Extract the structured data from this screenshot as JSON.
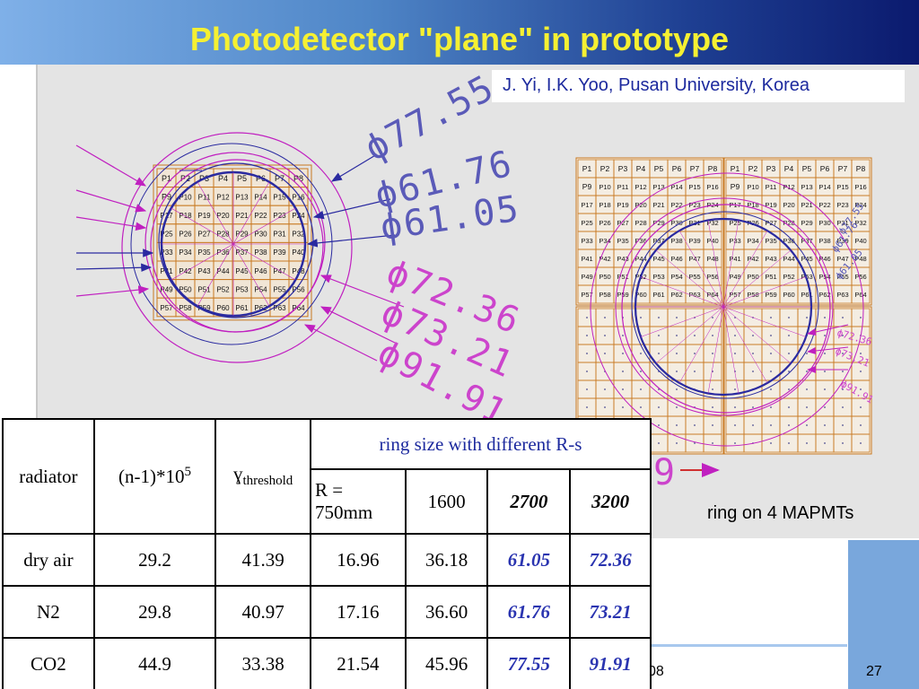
{
  "title": "Photodetector \"plane\" in prototype",
  "author": "J. Yi, I.K. Yoo, Pusan University, Korea",
  "caption": "ring on 4 MAPMTs",
  "footer": {
    "date_fragment": "08",
    "page_number": "27"
  },
  "left_diagram": {
    "pixel_rows": [
      [
        "P1",
        "P2",
        "P3",
        "P4",
        "P5",
        "P6",
        "P7",
        "P8"
      ],
      [
        "P9",
        "P10",
        "P11",
        "P12",
        "P13",
        "P14",
        "P15",
        "P16"
      ],
      [
        "P17",
        "P18",
        "P19",
        "P20",
        "P21",
        "P22",
        "P23",
        "P24"
      ],
      [
        "P25",
        "P26",
        "P27",
        "P28",
        "P29",
        "P30",
        "P31",
        "P32"
      ],
      [
        "P33",
        "P34",
        "P35",
        "P36",
        "P37",
        "P38",
        "P39",
        "P40"
      ],
      [
        "P41",
        "P42",
        "P43",
        "P44",
        "P45",
        "P46",
        "P47",
        "P48"
      ],
      [
        "P49",
        "P50",
        "P51",
        "P52",
        "P53",
        "P54",
        "P55",
        "P56"
      ],
      [
        "P57",
        "P58",
        "P59",
        "P60",
        "P61",
        "P62",
        "P63",
        "P64"
      ]
    ],
    "dim_labels": [
      "ϕ77.55",
      "ϕ61.76",
      "ϕ61.05",
      "ϕ72.36",
      "ϕ73.21",
      "ϕ91.91"
    ],
    "colors": {
      "blue": "#2a2aa0",
      "magenta": "#c020c0",
      "grid": "#c87820",
      "dim_blue": "#5a5ab8",
      "dim_magenta": "#cc44cc"
    }
  },
  "right_diagram": {
    "small_labels": [
      "ϕ77.55",
      "ϕ61.76",
      "ϕ61.05",
      "ϕ72.36",
      "ϕ73.21",
      "ϕ91.91"
    ],
    "partial_label": "9"
  },
  "table": {
    "col_headers": {
      "radiator": "radiator",
      "n_minus_1": "(n-1)*10",
      "n_minus_1_exp": "5",
      "gamma": "ɣ",
      "gamma_sub": "threshold",
      "ring_size": "ring size with different R-s",
      "r750": "R = 750mm",
      "r1600": "1600",
      "r2700": "2700",
      "r3200": "3200"
    },
    "rows": [
      {
        "radiator": "dry air",
        "n": "29.2",
        "gamma": "41.39",
        "r750": "16.96",
        "r1600": "36.18",
        "r2700": "61.05",
        "r3200": "72.36"
      },
      {
        "radiator": "N2",
        "n": "29.8",
        "gamma": "40.97",
        "r750": "17.16",
        "r1600": "36.60",
        "r2700": "61.76",
        "r3200": "73.21"
      },
      {
        "radiator": "CO2",
        "n": "44.9",
        "gamma": "33.38",
        "r750": "21.54",
        "r1600": "45.96",
        "r2700": "77.55",
        "r3200": "91.91"
      }
    ]
  }
}
